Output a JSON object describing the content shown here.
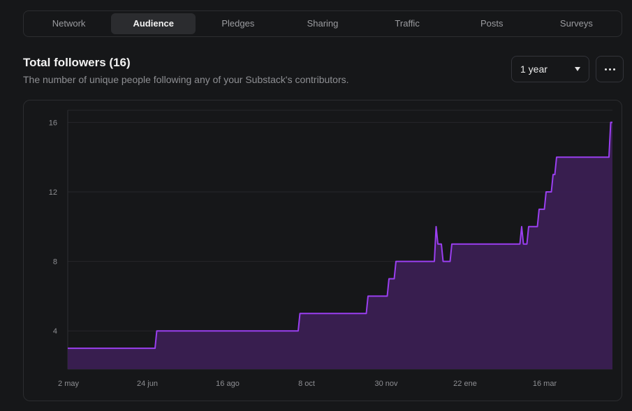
{
  "tabs": [
    {
      "label": "Network",
      "active": false
    },
    {
      "label": "Audience",
      "active": true
    },
    {
      "label": "Pledges",
      "active": false
    },
    {
      "label": "Sharing",
      "active": false
    },
    {
      "label": "Traffic",
      "active": false
    },
    {
      "label": "Posts",
      "active": false
    },
    {
      "label": "Surveys",
      "active": false
    }
  ],
  "header": {
    "title": "Total followers (16)",
    "subtitle": "The number of unique people following any of your Substack's contributors."
  },
  "range_select": {
    "value": "1 year"
  },
  "more_button": {
    "icon": "more-horizontal-icon"
  },
  "colors": {
    "line": "#9a3ff0",
    "fill": "#3a1f52",
    "background": "#161719"
  },
  "chart_data": {
    "type": "area",
    "title": "",
    "xlabel": "",
    "ylabel": "",
    "x_ticks": [
      "2 may",
      "24 jun",
      "16 ago",
      "8 oct",
      "30 nov",
      "22 ene",
      "16 mar"
    ],
    "y_ticks": [
      4,
      8,
      12,
      16
    ],
    "ylim": [
      1.8,
      16.7
    ],
    "grid": true,
    "series": [
      {
        "points": [
          [
            0,
            3
          ],
          [
            50,
            3
          ],
          [
            51,
            4
          ],
          [
            132,
            4
          ],
          [
            133,
            5
          ],
          [
            171,
            5
          ],
          [
            172,
            6
          ],
          [
            183,
            6
          ],
          [
            184,
            7
          ],
          [
            187,
            7
          ],
          [
            188,
            8
          ],
          [
            210,
            8
          ],
          [
            211,
            10
          ],
          [
            212,
            9
          ],
          [
            214,
            9
          ],
          [
            215,
            8
          ],
          [
            219,
            8
          ],
          [
            220,
            9
          ],
          [
            259,
            9
          ],
          [
            260,
            10
          ],
          [
            261,
            9
          ],
          [
            263,
            9
          ],
          [
            264,
            10
          ],
          [
            269,
            10
          ],
          [
            270,
            11
          ],
          [
            273,
            11
          ],
          [
            274,
            12
          ],
          [
            277,
            12
          ],
          [
            278,
            13
          ],
          [
            279,
            13
          ],
          [
            280,
            14
          ],
          [
            310,
            14
          ],
          [
            311,
            16
          ],
          [
            312,
            16
          ]
        ]
      }
    ]
  }
}
